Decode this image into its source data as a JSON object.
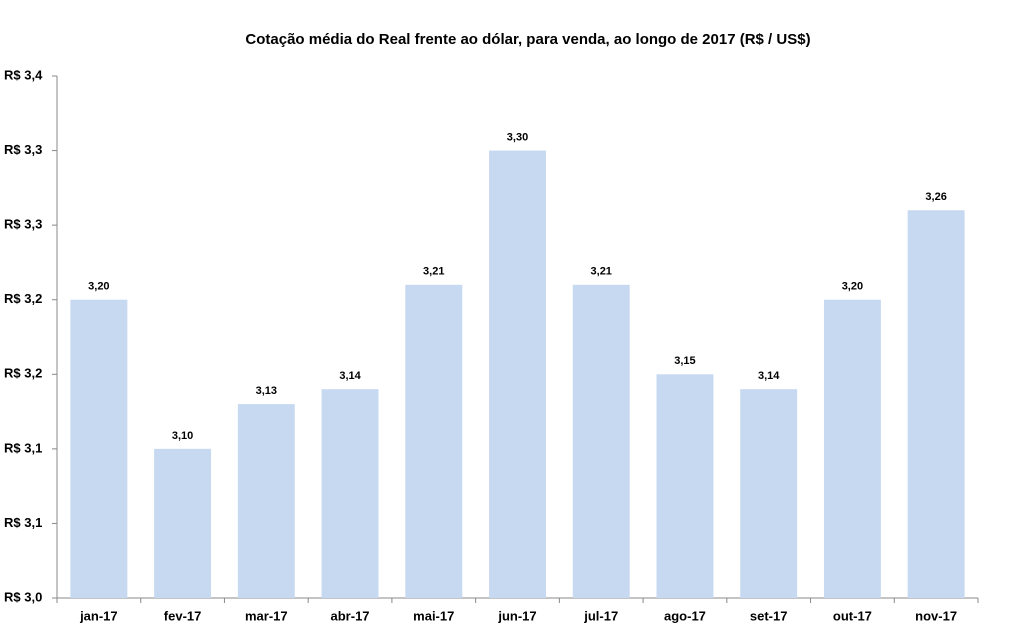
{
  "chart_data": {
    "type": "bar",
    "title": "Cotação média do Real frente ao dólar, para venda, ao longo de 2017 (R$ / US$)",
    "categories": [
      "jan-17",
      "fev-17",
      "mar-17",
      "abr-17",
      "mai-17",
      "jun-17",
      "jul-17",
      "ago-17",
      "set-17",
      "out-17",
      "nov-17"
    ],
    "values": [
      3.2,
      3.1,
      3.13,
      3.14,
      3.21,
      3.3,
      3.21,
      3.15,
      3.14,
      3.2,
      3.26
    ],
    "value_labels": [
      "3,20",
      "3,10",
      "3,13",
      "3,14",
      "3,21",
      "3,30",
      "3,21",
      "3,15",
      "3,14",
      "3,20",
      "3,26"
    ],
    "color": "#c6d9f1",
    "ylim": [
      3.0,
      3.35
    ],
    "yticks": [
      {
        "value": 3.0,
        "label": "R$ 3,0"
      },
      {
        "value": 3.05,
        "label": "R$ 3,1"
      },
      {
        "value": 3.1,
        "label": "R$ 3,1"
      },
      {
        "value": 3.15,
        "label": "R$ 3,2"
      },
      {
        "value": 3.2,
        "label": "R$ 3,2"
      },
      {
        "value": 3.25,
        "label": "R$ 3,3"
      },
      {
        "value": 3.3,
        "label": "R$ 3,3"
      },
      {
        "value": 3.35,
        "label": "R$ 3,4"
      }
    ],
    "grid": false
  }
}
